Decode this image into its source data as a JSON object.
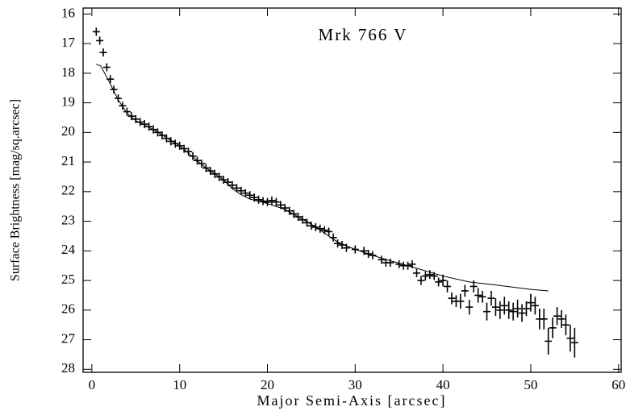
{
  "chart_data": {
    "type": "scatter",
    "title": "Mrk 766 V",
    "x_label": "Major Semi-Axis [arcsec]",
    "y_label": "Surface Brightness [mag/sq.arcsec]",
    "xlim": [
      -1,
      60.3
    ],
    "ylim": [
      15.8,
      28.1
    ],
    "y_inverted": true,
    "xticks": [
      0,
      10,
      20,
      30,
      40,
      50,
      60
    ],
    "yticks": [
      16,
      17,
      18,
      19,
      20,
      21,
      22,
      23,
      24,
      25,
      26,
      27,
      28
    ],
    "series": [
      {
        "type": "errorbar",
        "color": "#000000",
        "x": [
          0.5,
          0.9,
          1.3,
          1.7,
          2.1,
          2.5,
          3,
          3.5,
          4,
          4.5,
          5,
          5.5,
          6,
          6.5,
          7,
          7.5,
          8,
          8.5,
          9,
          9.5,
          10,
          10.5,
          11,
          11.5,
          12,
          12.5,
          13,
          13.5,
          14,
          14.5,
          15,
          15.5,
          16,
          16.5,
          17,
          17.5,
          18,
          18.5,
          19,
          19.5,
          20,
          20.5,
          21,
          21.5,
          22,
          22.5,
          23,
          23.5,
          24,
          24.5,
          25,
          25.5,
          26,
          26.5,
          27,
          27.5,
          28,
          28.5,
          29,
          30,
          31,
          31.5,
          32,
          33,
          33.5,
          34,
          35,
          35.5,
          36,
          36.5,
          37,
          37.5,
          38,
          38.5,
          39,
          39.5,
          40,
          40.5,
          41,
          41.5,
          42,
          42.5,
          43,
          43.5,
          44,
          44.5,
          45,
          45.5,
          46,
          46.5,
          47,
          47.5,
          48,
          48.5,
          49,
          49.5,
          50,
          50.5,
          51,
          51.5,
          52,
          52.5,
          53,
          53.5,
          54,
          54.5,
          55
        ],
        "values": [
          16.6,
          16.9,
          17.3,
          17.8,
          18.2,
          18.55,
          18.85,
          19.1,
          19.3,
          19.45,
          19.55,
          19.65,
          19.72,
          19.8,
          19.9,
          20.0,
          20.1,
          20.2,
          20.3,
          20.38,
          20.45,
          20.55,
          20.65,
          20.8,
          20.95,
          21.05,
          21.2,
          21.3,
          21.4,
          21.5,
          21.6,
          21.68,
          21.78,
          21.88,
          21.97,
          22.05,
          22.12,
          22.2,
          22.27,
          22.32,
          22.35,
          22.3,
          22.35,
          22.45,
          22.55,
          22.65,
          22.75,
          22.85,
          22.95,
          23.05,
          23.15,
          23.2,
          23.25,
          23.3,
          23.35,
          23.55,
          23.75,
          23.8,
          23.9,
          23.95,
          24.0,
          24.1,
          24.15,
          24.3,
          24.4,
          24.4,
          24.45,
          24.5,
          24.5,
          24.45,
          24.75,
          25.0,
          24.85,
          24.8,
          24.85,
          25.05,
          25.0,
          25.2,
          25.6,
          25.7,
          25.7,
          25.35,
          25.9,
          25.2,
          25.5,
          25.55,
          26.05,
          25.6,
          25.9,
          26.0,
          25.85,
          26.0,
          26.05,
          25.95,
          26.1,
          25.95,
          25.75,
          25.85,
          26.3,
          26.3,
          27.05,
          26.6,
          26.2,
          26.3,
          26.5,
          26.95,
          27.1
        ],
        "errors": [
          0.05,
          0.05,
          0.05,
          0.05,
          0.05,
          0.05,
          0.05,
          0.05,
          0.05,
          0.05,
          0.05,
          0.05,
          0.05,
          0.05,
          0.05,
          0.05,
          0.05,
          0.05,
          0.05,
          0.05,
          0.05,
          0.05,
          0.05,
          0.05,
          0.05,
          0.05,
          0.05,
          0.05,
          0.05,
          0.05,
          0.05,
          0.05,
          0.05,
          0.05,
          0.05,
          0.05,
          0.05,
          0.05,
          0.05,
          0.05,
          0.05,
          0.05,
          0.05,
          0.05,
          0.05,
          0.05,
          0.05,
          0.05,
          0.05,
          0.05,
          0.05,
          0.05,
          0.05,
          0.05,
          0.05,
          0.05,
          0.05,
          0.05,
          0.05,
          0.08,
          0.08,
          0.08,
          0.08,
          0.08,
          0.08,
          0.08,
          0.08,
          0.08,
          0.08,
          0.08,
          0.1,
          0.15,
          0.15,
          0.15,
          0.1,
          0.15,
          0.2,
          0.2,
          0.2,
          0.2,
          0.25,
          0.2,
          0.25,
          0.2,
          0.25,
          0.2,
          0.3,
          0.25,
          0.3,
          0.3,
          0.3,
          0.3,
          0.3,
          0.3,
          0.3,
          0.25,
          0.3,
          0.3,
          0.35,
          0.35,
          0.45,
          0.35,
          0.3,
          0.3,
          0.35,
          0.45,
          0.5
        ]
      },
      {
        "type": "line",
        "color": "#000000",
        "x": [
          0.5,
          1,
          2,
          3,
          4,
          5,
          7,
          10,
          13,
          15,
          16,
          17,
          18,
          20,
          22,
          25,
          28,
          30,
          33,
          36,
          40,
          43,
          46,
          50,
          52
        ],
        "values": [
          17.7,
          17.75,
          18.3,
          18.9,
          19.35,
          19.6,
          19.9,
          20.45,
          21.2,
          21.6,
          21.9,
          22.1,
          22.25,
          22.4,
          22.6,
          23.1,
          23.7,
          23.95,
          24.25,
          24.5,
          24.85,
          25.05,
          25.15,
          25.3,
          25.35
        ]
      }
    ]
  }
}
